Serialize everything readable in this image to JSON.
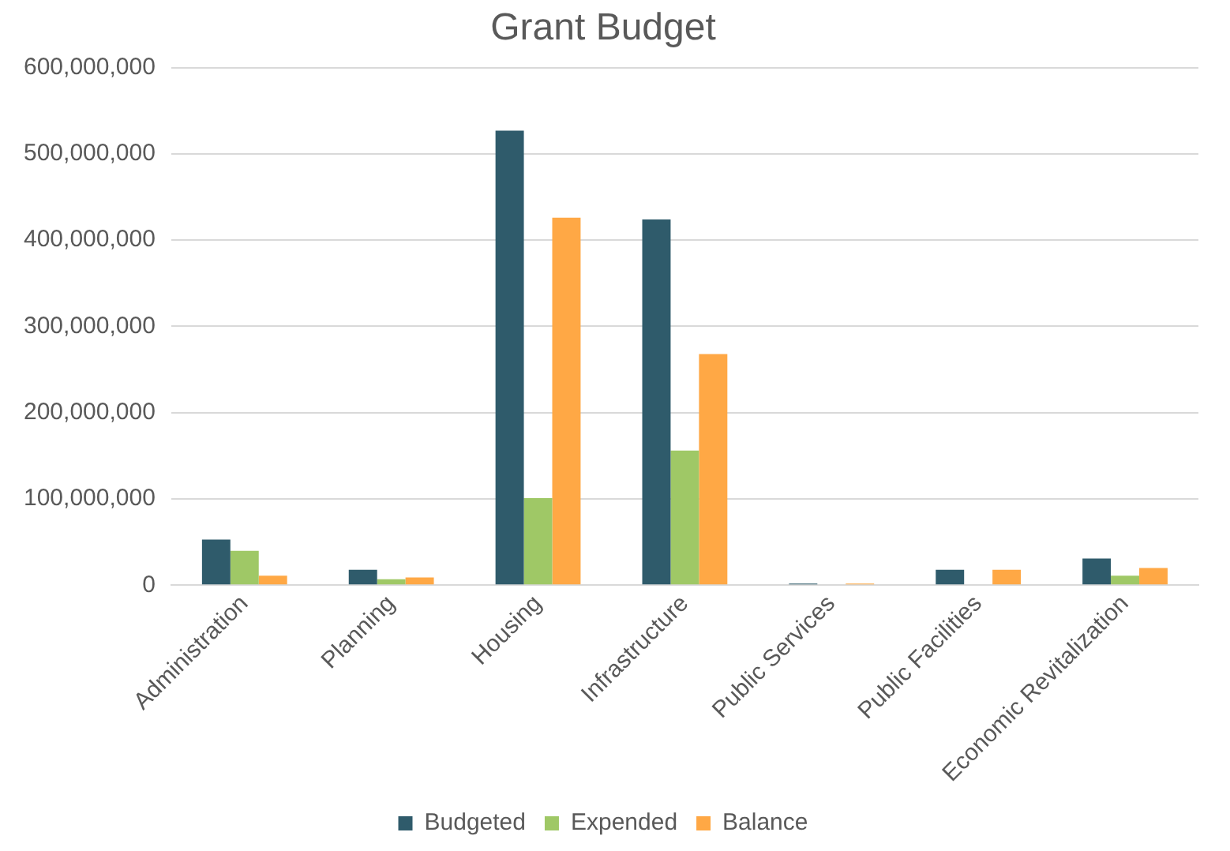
{
  "chart_data": {
    "type": "bar",
    "title": "Grant Budget",
    "categories": [
      "Administration",
      "Planning",
      "Housing",
      "Infrastructure",
      "Public Services",
      "Public Facilities",
      "Economic Revitalization"
    ],
    "series": [
      {
        "name": "Budgeted",
        "color": "#2f5b6b",
        "values": [
          53000000,
          18000000,
          527000000,
          424000000,
          2000000,
          18000000,
          31000000
        ]
      },
      {
        "name": "Expended",
        "color": "#9fc866",
        "values": [
          40000000,
          7000000,
          101000000,
          156000000,
          0,
          0,
          11000000
        ]
      },
      {
        "name": "Balance",
        "color": "#ffa845",
        "values": [
          11000000,
          9000000,
          426000000,
          268000000,
          2000000,
          18000000,
          20000000
        ]
      }
    ],
    "ylim": [
      0,
      600000000
    ],
    "yticks": [
      0,
      {
        "value": 100000000,
        "label": "100,000,000"
      },
      {
        "value": 200000000,
        "label": "200,000,000"
      },
      {
        "value": 300000000,
        "label": "300,000,000"
      },
      {
        "value": 400000000,
        "label": "400,000,000"
      },
      {
        "value": 500000000,
        "label": "500,000,000"
      },
      {
        "value": 600000000,
        "label": "600,000,000"
      }
    ],
    "grid": "y",
    "legend": "bottom"
  }
}
